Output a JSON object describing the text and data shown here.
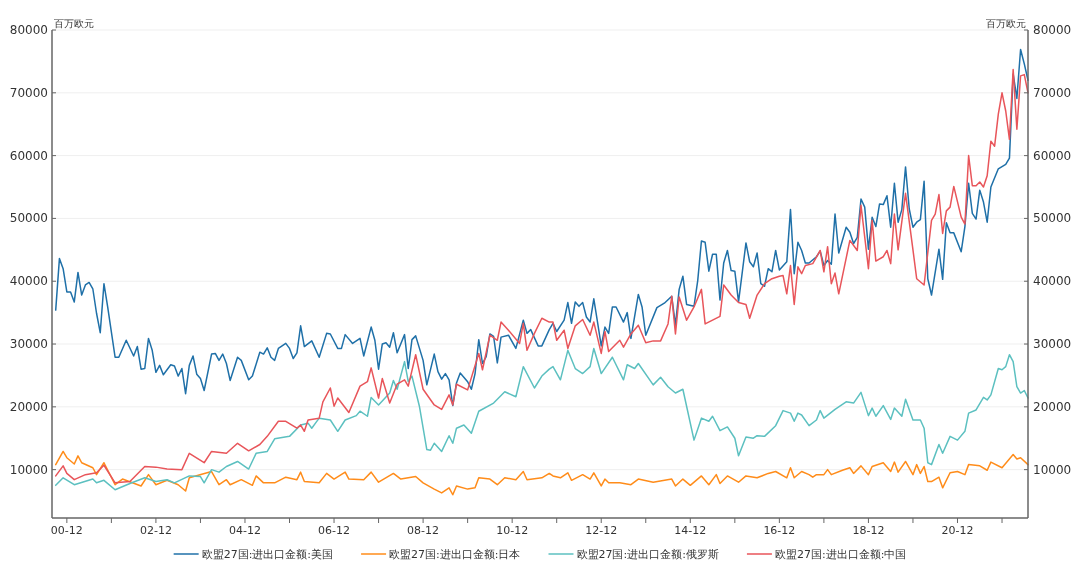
{
  "chart_data": {
    "type": "line",
    "ylabel": "百万欧元",
    "y2label": "百万欧元",
    "xlim": [
      "2000-08",
      "2022-07"
    ],
    "xticks": [
      {
        "value": "2000-12",
        "label": "00-12"
      },
      {
        "value": "2001-12",
        "label": null
      },
      {
        "value": "2002-12",
        "label": "02-12"
      },
      {
        "value": "2003-12",
        "label": null
      },
      {
        "value": "2004-12",
        "label": "04-12"
      },
      {
        "value": "2005-12",
        "label": null
      },
      {
        "value": "2006-12",
        "label": "06-12"
      },
      {
        "value": "2007-12",
        "label": null
      },
      {
        "value": "2008-12",
        "label": "08-12"
      },
      {
        "value": "2009-12",
        "label": null
      },
      {
        "value": "2010-12",
        "label": "10-12"
      },
      {
        "value": "2011-12",
        "label": null
      },
      {
        "value": "2012-12",
        "label": "12-12"
      },
      {
        "value": "2013-12",
        "label": null
      },
      {
        "value": "2014-12",
        "label": "14-12"
      },
      {
        "value": "2015-12",
        "label": null
      },
      {
        "value": "2016-12",
        "label": "16-12"
      },
      {
        "value": "2017-12",
        "label": null
      },
      {
        "value": "2018-12",
        "label": "18-12"
      },
      {
        "value": "2019-12",
        "label": null
      },
      {
        "value": "2020-12",
        "label": "20-12"
      },
      {
        "value": "2021-12",
        "label": null
      }
    ],
    "ylim": [
      2300,
      80000
    ],
    "yticks": [
      10000,
      20000,
      30000,
      40000,
      50000,
      60000,
      70000,
      80000
    ],
    "y2lim": [
      2300,
      80000
    ],
    "y2ticks": [
      10000,
      20000,
      30000,
      40000,
      50000,
      60000,
      70000,
      80000
    ],
    "grid": "y",
    "legend": "bottom",
    "series": [
      {
        "name": "欧盟27国:进出口金额:美国",
        "color": "#1f70a8",
        "x": [
          "2000-09",
          "2000-10",
          "2000-11",
          "2000-12",
          "2001-01",
          "2001-02",
          "2001-03",
          "2001-04",
          "2001-05",
          "2001-06",
          "2001-07",
          "2001-08",
          "2001-09",
          "2001-10",
          "2001-11",
          "2002-01",
          "2002-02",
          "2002-04",
          "2002-06",
          "2002-07",
          "2002-08",
          "2002-09",
          "2002-10",
          "2002-11",
          "2002-12",
          "2003-01",
          "2003-02",
          "2003-04",
          "2003-05",
          "2003-06",
          "2003-07",
          "2003-08",
          "2003-09",
          "2003-10",
          "2003-11",
          "2003-12",
          "2004-01",
          "2004-03",
          "2004-04",
          "2004-05",
          "2004-06",
          "2004-07",
          "2004-08",
          "2004-10",
          "2004-11",
          "2005-01",
          "2005-02",
          "2005-04",
          "2005-05",
          "2005-06",
          "2005-07",
          "2005-08",
          "2005-09",
          "2005-11",
          "2005-12",
          "2006-01",
          "2006-02",
          "2006-03",
          "2006-04",
          "2006-06",
          "2006-08",
          "2006-10",
          "2006-11",
          "2007-01",
          "2007-02",
          "2007-03",
          "2007-05",
          "2007-07",
          "2007-08",
          "2007-10",
          "2007-11",
          "2007-12",
          "2008-01",
          "2008-02",
          "2008-03",
          "2008-04",
          "2008-05",
          "2008-07",
          "2008-08",
          "2008-09",
          "2008-10",
          "2008-12",
          "2009-01",
          "2009-03",
          "2009-04",
          "2009-05",
          "2009-06",
          "2009-07",
          "2009-08",
          "2009-09",
          "2009-10",
          "2009-12",
          "2010-01",
          "2010-02",
          "2010-03",
          "2010-04",
          "2010-05",
          "2010-06",
          "2010-07",
          "2010-08",
          "2010-09",
          "2010-11",
          "2011-01",
          "2011-03",
          "2011-04",
          "2011-05",
          "2011-07",
          "2011-08",
          "2011-10",
          "2011-11",
          "2011-12",
          "2012-02",
          "2012-03",
          "2012-04",
          "2012-05",
          "2012-06",
          "2012-07",
          "2012-08",
          "2012-09",
          "2012-10",
          "2012-11",
          "2012-12",
          "2013-01",
          "2013-02",
          "2013-03",
          "2013-04",
          "2013-06",
          "2013-07",
          "2013-08",
          "2013-10",
          "2013-11",
          "2013-12",
          "2014-03",
          "2014-05",
          "2014-07",
          "2014-08",
          "2014-09",
          "2014-10",
          "2014-11",
          "2015-01",
          "2015-02",
          "2015-03",
          "2015-04",
          "2015-05",
          "2015-06",
          "2015-07",
          "2015-08",
          "2015-09",
          "2015-10",
          "2015-11",
          "2015-12",
          "2016-01",
          "2016-03",
          "2016-04",
          "2016-05",
          "2016-06",
          "2016-07",
          "2016-08",
          "2016-09",
          "2016-10",
          "2016-11",
          "2016-12",
          "2017-02",
          "2017-03",
          "2017-04",
          "2017-05",
          "2017-06",
          "2017-07",
          "2017-08",
          "2017-10",
          "2017-11",
          "2017-12",
          "2018-01",
          "2018-02",
          "2018-03",
          "2018-04",
          "2018-06",
          "2018-07",
          "2018-08",
          "2018-09",
          "2018-10",
          "2018-11",
          "2018-12",
          "2019-01",
          "2019-02",
          "2019-03",
          "2019-04",
          "2019-05",
          "2019-06",
          "2019-07",
          "2019-08",
          "2019-09",
          "2019-10",
          "2019-11",
          "2019-12",
          "2020-01",
          "2020-02",
          "2020-03",
          "2020-04",
          "2020-05",
          "2020-07",
          "2020-08",
          "2020-09",
          "2020-10",
          "2020-11",
          "2021-01",
          "2021-02",
          "2021-03",
          "2021-04",
          "2021-05",
          "2021-06",
          "2021-07",
          "2021-08",
          "2021-09",
          "2021-11",
          "2022-01",
          "2022-02",
          "2022-03",
          "2022-04",
          "2022-05",
          "2022-06",
          "2022-07"
        ],
        "values": [
          35400,
          43600,
          42000,
          38300,
          38300,
          36700,
          41400,
          37800,
          39400,
          39800,
          38800,
          34900,
          31800,
          39600,
          35900,
          27900,
          27900,
          30600,
          28100,
          29600,
          26000,
          26100,
          30900,
          29000,
          25500,
          26600,
          25100,
          26700,
          26500,
          24900,
          26100,
          22100,
          26600,
          28100,
          25200,
          24500,
          22600,
          28400,
          28500,
          27400,
          28400,
          26900,
          24200,
          27900,
          27400,
          24300,
          24900,
          28700,
          28400,
          29400,
          27900,
          27400,
          29300,
          30100,
          29300,
          27700,
          28600,
          32900,
          29600,
          30500,
          27900,
          31700,
          31600,
          29300,
          29300,
          31500,
          30100,
          30900,
          28100,
          32700,
          30600,
          26000,
          30000,
          30200,
          29500,
          31800,
          28600,
          31500,
          26100,
          30700,
          31300,
          27400,
          23500,
          28400,
          25600,
          24400,
          25300,
          24300,
          20200,
          23800,
          25400,
          24000,
          22800,
          25300,
          30700,
          26900,
          28000,
          31600,
          31200,
          27000,
          31100,
          31400,
          29300,
          33800,
          31700,
          32300,
          29700,
          29700,
          32300,
          33300,
          32000,
          33800,
          36600,
          33300,
          36700,
          36000,
          36600,
          34300,
          33500,
          37200,
          33500,
          29700,
          32700,
          31700,
          35900,
          35900,
          33500,
          35000,
          30900,
          37900,
          35900,
          31400,
          35800,
          36500,
          37600,
          33000,
          38700,
          40800,
          36300,
          36000,
          40100,
          46400,
          46200,
          41600,
          44300,
          44300,
          37000,
          42900,
          44900,
          41700,
          41600,
          36700,
          46100,
          43100,
          42300,
          44500,
          39600,
          39200,
          42000,
          41500,
          44900,
          41800,
          43100,
          51400,
          41200,
          46200,
          44900,
          42900,
          42900,
          43900,
          44800,
          42500,
          43300,
          42700,
          50700,
          44500,
          48600,
          47800,
          46000,
          47000,
          53100,
          51800,
          45100,
          50200,
          48700,
          52300,
          52200,
          53600,
          48600,
          55600,
          49400,
          51400,
          58200,
          51500,
          48600,
          49400,
          49800,
          55900,
          40400,
          37800,
          45100,
          40300,
          49300,
          47700,
          47700,
          44700,
          48700,
          55600,
          50800,
          49900,
          54500,
          52600,
          49400,
          55000,
          57900,
          58600,
          59600,
          73000,
          69100,
          76900,
          74600,
          72000
        ]
      },
      {
        "name": "欧盟27国:进出口金额:日本",
        "color": "#ff8c1a",
        "x": [
          "2000-09",
          "2000-11",
          "2000-12",
          "2001-02",
          "2001-03",
          "2001-04",
          "2001-07",
          "2001-08",
          "2001-10",
          "2002-01",
          "2002-03",
          "2002-08",
          "2002-10",
          "2002-12",
          "2003-03",
          "2003-06",
          "2003-08",
          "2003-09",
          "2004-03",
          "2004-05",
          "2004-07",
          "2004-08",
          "2004-11",
          "2005-02",
          "2005-03",
          "2005-05",
          "2005-08",
          "2005-11",
          "2006-02",
          "2006-03",
          "2006-04",
          "2006-08",
          "2006-10",
          "2006-12",
          "2007-03",
          "2007-04",
          "2007-08",
          "2007-10",
          "2007-12",
          "2008-04",
          "2008-06",
          "2008-10",
          "2008-12",
          "2009-03",
          "2009-05",
          "2009-07",
          "2009-08",
          "2009-09",
          "2009-12",
          "2010-02",
          "2010-03",
          "2010-06",
          "2010-08",
          "2010-10",
          "2011-01",
          "2011-03",
          "2011-04",
          "2011-08",
          "2011-10",
          "2011-11",
          "2012-01",
          "2012-03",
          "2012-04",
          "2012-07",
          "2012-09",
          "2012-10",
          "2012-12",
          "2013-01",
          "2013-02",
          "2013-05",
          "2013-08",
          "2013-10",
          "2014-02",
          "2014-07",
          "2014-08",
          "2014-10",
          "2014-12",
          "2015-03",
          "2015-05",
          "2015-07",
          "2015-08",
          "2015-10",
          "2016-01",
          "2016-03",
          "2016-06",
          "2016-09",
          "2016-11",
          "2017-02",
          "2017-03",
          "2017-04",
          "2017-06",
          "2017-08",
          "2017-09",
          "2017-10",
          "2017-12",
          "2018-01",
          "2018-02",
          "2018-05",
          "2018-07",
          "2018-08",
          "2018-10",
          "2018-12",
          "2019-01",
          "2019-04",
          "2019-06",
          "2019-07",
          "2019-08",
          "2019-10",
          "2019-12",
          "2020-01",
          "2020-02",
          "2020-03",
          "2020-04",
          "2020-05",
          "2020-07",
          "2020-08",
          "2020-10",
          "2020-12",
          "2021-02",
          "2021-03",
          "2021-06",
          "2021-08",
          "2021-09",
          "2021-12",
          "2022-03",
          "2022-04",
          "2022-05",
          "2022-07"
        ],
        "values": [
          10800,
          12900,
          11900,
          10900,
          12200,
          11100,
          10300,
          9200,
          11100,
          7600,
          8500,
          7400,
          9200,
          7600,
          8300,
          7600,
          6600,
          8700,
          9700,
          7600,
          8400,
          7600,
          8400,
          7500,
          9000,
          7900,
          7900,
          8800,
          8400,
          9600,
          8100,
          7900,
          9400,
          8500,
          9600,
          8500,
          8400,
          9600,
          8000,
          9400,
          8500,
          8900,
          7900,
          6900,
          6300,
          7100,
          6000,
          7400,
          6900,
          7100,
          8700,
          8500,
          7600,
          8700,
          8400,
          9700,
          8400,
          8700,
          9400,
          9000,
          8700,
          9500,
          8300,
          9200,
          8500,
          9500,
          7400,
          8500,
          7900,
          7900,
          7600,
          8500,
          8000,
          8500,
          7400,
          8500,
          7500,
          9000,
          7600,
          9200,
          7800,
          9000,
          8000,
          9000,
          8700,
          9400,
          9700,
          8700,
          10300,
          8700,
          9700,
          9200,
          8800,
          9200,
          9200,
          10000,
          9200,
          9900,
          10300,
          9400,
          10600,
          9200,
          10500,
          11100,
          9700,
          11200,
          9600,
          11300,
          9200,
          10800,
          9400,
          10500,
          8100,
          8100,
          8800,
          7100,
          9500,
          9700,
          9200,
          10800,
          10600,
          9900,
          11200,
          10300,
          12400,
          11700,
          11900,
          10800
        ]
      },
      {
        "name": "欧盟27国:进出口金额:俄罗斯",
        "color": "#5cc0c0",
        "x": [
          "2000-09",
          "2000-11",
          "2001-02",
          "2001-07",
          "2001-08",
          "2001-10",
          "2002-01",
          "2002-05",
          "2002-09",
          "2002-12",
          "2003-03",
          "2003-05",
          "2003-09",
          "2003-12",
          "2004-01",
          "2004-03",
          "2004-05",
          "2004-07",
          "2004-10",
          "2005-01",
          "2005-03",
          "2005-06",
          "2005-08",
          "2005-12",
          "2006-03",
          "2006-05",
          "2006-06",
          "2006-07",
          "2006-08",
          "2006-11",
          "2007-01",
          "2007-03",
          "2007-06",
          "2007-07",
          "2007-09",
          "2007-10",
          "2007-12",
          "2008-03",
          "2008-04",
          "2008-05",
          "2008-07",
          "2008-08",
          "2008-09",
          "2008-11",
          "2009-01",
          "2009-02",
          "2009-03",
          "2009-05",
          "2009-07",
          "2009-08",
          "2009-09",
          "2009-11",
          "2010-01",
          "2010-03",
          "2010-07",
          "2010-10",
          "2011-01",
          "2011-03",
          "2011-06",
          "2011-08",
          "2011-10",
          "2011-11",
          "2012-01",
          "2012-03",
          "2012-05",
          "2012-07",
          "2012-09",
          "2012-10",
          "2012-12",
          "2013-03",
          "2013-06",
          "2013-07",
          "2013-09",
          "2013-10",
          "2014-02",
          "2014-04",
          "2014-06",
          "2014-08",
          "2014-10",
          "2015-01",
          "2015-03",
          "2015-05",
          "2015-06",
          "2015-08",
          "2015-10",
          "2015-12",
          "2016-01",
          "2016-03",
          "2016-05",
          "2016-06",
          "2016-08",
          "2016-11",
          "2017-01",
          "2017-03",
          "2017-04",
          "2017-05",
          "2017-06",
          "2017-08",
          "2017-10",
          "2017-11",
          "2017-12",
          "2018-03",
          "2018-06",
          "2018-08",
          "2018-10",
          "2018-12",
          "2019-01",
          "2019-02",
          "2019-04",
          "2019-06",
          "2019-07",
          "2019-09",
          "2019-10",
          "2019-12",
          "2020-02",
          "2020-03",
          "2020-04",
          "2020-05",
          "2020-07",
          "2020-08",
          "2020-10",
          "2020-12",
          "2021-02",
          "2021-03",
          "2021-05",
          "2021-07",
          "2021-08",
          "2021-09",
          "2021-11",
          "2021-12",
          "2022-01",
          "2022-02",
          "2022-03",
          "2022-04",
          "2022-05",
          "2022-06",
          "2022-07"
        ],
        "values": [
          7500,
          8700,
          7600,
          8500,
          7900,
          8300,
          6800,
          7800,
          8700,
          8100,
          8400,
          7900,
          9000,
          8900,
          7900,
          10000,
          9600,
          10500,
          11300,
          10100,
          12600,
          12900,
          14900,
          15300,
          17100,
          17400,
          16600,
          17400,
          18200,
          17900,
          16100,
          17900,
          18600,
          19300,
          18500,
          21500,
          20300,
          22200,
          24200,
          22800,
          27200,
          24000,
          24900,
          20100,
          13200,
          13100,
          14200,
          12900,
          15400,
          14200,
          16600,
          17100,
          15800,
          19300,
          20600,
          22400,
          21600,
          26400,
          23000,
          24900,
          26000,
          26400,
          24300,
          29000,
          26100,
          25300,
          26400,
          29300,
          25300,
          27900,
          24300,
          26700,
          26100,
          26900,
          23500,
          24700,
          23200,
          22200,
          22800,
          14700,
          18200,
          17700,
          18500,
          16200,
          16800,
          15000,
          12200,
          15200,
          15000,
          15400,
          15300,
          17000,
          19400,
          19000,
          17700,
          19000,
          18700,
          17000,
          17900,
          19400,
          18200,
          19600,
          20800,
          20600,
          22300,
          18600,
          19800,
          18500,
          20200,
          18000,
          19800,
          18500,
          21200,
          17900,
          17900,
          16600,
          11100,
          10800,
          14000,
          12600,
          15300,
          14700,
          16100,
          19000,
          19500,
          21500,
          21100,
          21900,
          26100,
          25900,
          26400,
          28300,
          27200,
          23200,
          22200,
          22600,
          21400
        ]
      },
      {
        "name": "欧盟27国:进出口金额:中国",
        "color": "#e8555a",
        "x": [
          "2000-09",
          "2000-11",
          "2000-12",
          "2001-02",
          "2001-05",
          "2001-08",
          "2001-10",
          "2002-01",
          "2002-05",
          "2002-09",
          "2002-12",
          "2003-03",
          "2003-07",
          "2003-09",
          "2004-01",
          "2004-03",
          "2004-07",
          "2004-10",
          "2005-01",
          "2005-04",
          "2005-06",
          "2005-09",
          "2005-11",
          "2006-02",
          "2006-03",
          "2006-04",
          "2006-05",
          "2006-08",
          "2006-09",
          "2006-11",
          "2006-12",
          "2007-01",
          "2007-04",
          "2007-07",
          "2007-09",
          "2007-10",
          "2007-12",
          "2008-01",
          "2008-03",
          "2008-05",
          "2008-07",
          "2008-08",
          "2008-10",
          "2008-12",
          "2009-03",
          "2009-05",
          "2009-07",
          "2009-08",
          "2009-09",
          "2009-12",
          "2010-03",
          "2010-04",
          "2010-06",
          "2010-08",
          "2010-09",
          "2010-11",
          "2011-02",
          "2011-03",
          "2011-04",
          "2011-06",
          "2011-08",
          "2011-10",
          "2011-11",
          "2011-12",
          "2012-02",
          "2012-03",
          "2012-05",
          "2012-07",
          "2012-09",
          "2012-10",
          "2012-12",
          "2013-01",
          "2013-02",
          "2013-05",
          "2013-06",
          "2013-08",
          "2013-10",
          "2013-12",
          "2014-02",
          "2014-04",
          "2014-06",
          "2014-07",
          "2014-08",
          "2014-09",
          "2014-11",
          "2015-01",
          "2015-03",
          "2015-04",
          "2015-06",
          "2015-08",
          "2015-09",
          "2015-11",
          "2016-01",
          "2016-03",
          "2016-04",
          "2016-06",
          "2016-08",
          "2016-10",
          "2016-12",
          "2017-01",
          "2017-02",
          "2017-03",
          "2017-04",
          "2017-05",
          "2017-06",
          "2017-07",
          "2017-09",
          "2017-11",
          "2017-12",
          "2018-01",
          "2018-02",
          "2018-03",
          "2018-04",
          "2018-07",
          "2018-09",
          "2018-10",
          "2018-12",
          "2019-01",
          "2019-02",
          "2019-04",
          "2019-05",
          "2019-06",
          "2019-07",
          "2019-08",
          "2019-10",
          "2019-12",
          "2020-01",
          "2020-03",
          "2020-05",
          "2020-06",
          "2020-07",
          "2020-08",
          "2020-09",
          "2020-10",
          "2020-11",
          "2021-01",
          "2021-02",
          "2021-03",
          "2021-04",
          "2021-05",
          "2021-06",
          "2021-07",
          "2021-08",
          "2021-09",
          "2021-10",
          "2021-11",
          "2021-12",
          "2022-01",
          "2022-02",
          "2022-03",
          "2022-04",
          "2022-05",
          "2022-06",
          "2022-07"
        ],
        "values": [
          9000,
          10600,
          9400,
          8400,
          9200,
          9500,
          10700,
          7900,
          8100,
          10500,
          10400,
          10100,
          10000,
          12600,
          11100,
          12900,
          12600,
          14200,
          13000,
          14000,
          15300,
          17700,
          17700,
          16600,
          17100,
          16100,
          17900,
          18200,
          20800,
          23000,
          20100,
          21400,
          19100,
          23300,
          24000,
          26200,
          21400,
          24500,
          20600,
          23600,
          24300,
          23300,
          28300,
          22800,
          20300,
          19600,
          21900,
          20300,
          23600,
          22700,
          28500,
          25900,
          31400,
          30600,
          33500,
          32200,
          30100,
          33300,
          29000,
          31700,
          34100,
          33500,
          33500,
          30600,
          32200,
          29300,
          32900,
          33900,
          31400,
          33500,
          28500,
          32000,
          28800,
          30600,
          29500,
          31600,
          33000,
          30200,
          30500,
          30500,
          33200,
          37600,
          31600,
          37500,
          33800,
          35900,
          38700,
          33200,
          33800,
          34400,
          39400,
          37800,
          36600,
          36300,
          34100,
          37800,
          39600,
          40400,
          40800,
          40900,
          38000,
          42500,
          36300,
          42300,
          41200,
          42500,
          42800,
          44900,
          41500,
          45500,
          39600,
          41300,
          38000,
          46500,
          44900,
          52100,
          42000,
          49700,
          43200,
          43900,
          44900,
          42800,
          50700,
          45000,
          54000,
          45000,
          40400,
          39400,
          49700,
          50700,
          53800,
          47600,
          51200,
          51800,
          55100,
          50200,
          49100,
          60000,
          55200,
          55200,
          55800,
          55000,
          56800,
          62300,
          61500,
          66600,
          70000,
          67100,
          62600,
          73700,
          64200,
          72700,
          72900,
          70000
        ]
      }
    ]
  }
}
